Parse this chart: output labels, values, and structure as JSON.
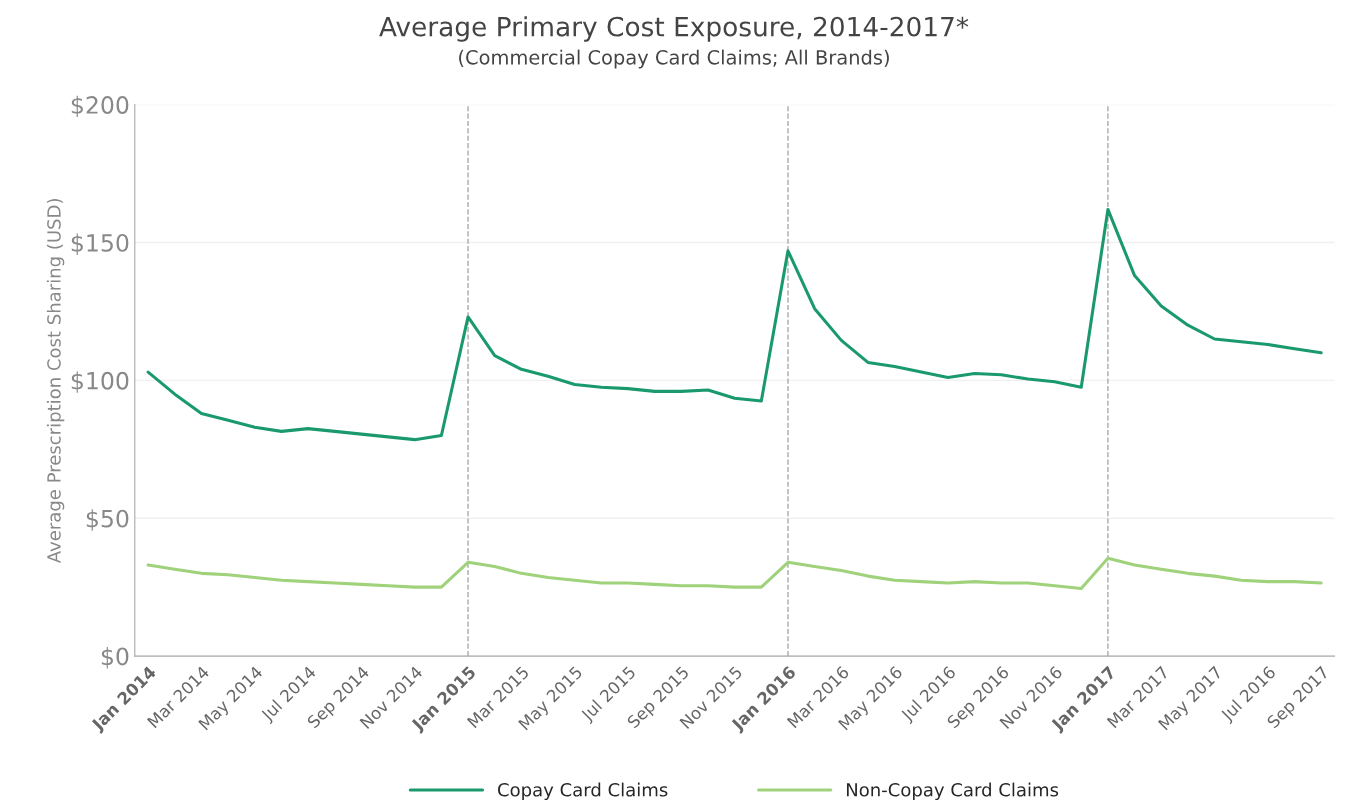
{
  "chart_data": {
    "type": "line",
    "title": "Average Primary Cost Exposure, 2014-2017*",
    "subtitle": "(Commercial Copay Card Claims; All Brands)",
    "ylabel": "Average Prescription Cost Sharing (USD)",
    "categories": [
      "Jan 2014",
      null,
      "Mar 2014",
      null,
      "May 2014",
      null,
      "Jul 2014",
      null,
      "Sep 2014",
      null,
      "Nov 2014",
      null,
      "Jan 2015",
      null,
      "Mar 2015",
      null,
      "May 2015",
      null,
      "Jul 2015",
      null,
      "Sep 2015",
      null,
      "Nov 2015",
      null,
      "Jan 2016",
      null,
      "Mar 2016",
      null,
      "May 2016",
      null,
      "Jul 2016",
      null,
      "Sep 2016",
      null,
      "Nov 2016",
      null,
      "Jan 2017",
      null,
      "Mar 2017",
      null,
      "May 2017",
      null,
      "Jul 2016",
      null,
      "Sep 2017"
    ],
    "series": [
      {
        "name": "Copay Card Claims",
        "color": "#1a9a6c",
        "values": [
          103,
          95,
          88,
          85.5,
          83,
          81.5,
          82.5,
          81.5,
          80.5,
          79.5,
          78.5,
          80,
          123,
          109,
          104,
          101.5,
          98.5,
          97.5,
          97,
          96,
          96,
          96.5,
          93.5,
          92.5,
          147,
          126,
          114.5,
          106.5,
          105,
          103,
          101,
          102.5,
          102,
          100.5,
          99.5,
          97.5,
          162,
          138,
          127,
          120,
          115,
          114,
          113,
          111.5,
          110
        ]
      },
      {
        "name": "Non-Copay Card Claims",
        "color": "#9fd27a",
        "values": [
          33,
          31.5,
          30,
          29.5,
          28.5,
          27.5,
          27,
          26.5,
          26,
          25.5,
          25,
          25,
          34,
          32.5,
          30,
          28.5,
          27.5,
          26.5,
          26.5,
          26,
          25.5,
          25.5,
          25,
          25,
          34,
          32.5,
          31,
          29,
          27.5,
          27,
          26.5,
          27,
          26.5,
          26.5,
          25.5,
          24.5,
          35.5,
          33,
          31.5,
          30,
          29,
          27.5,
          27,
          27,
          26.5
        ]
      }
    ],
    "ylim": [
      0,
      200
    ],
    "yticks": [
      {
        "value": 0,
        "label": "$0"
      },
      {
        "value": 50,
        "label": "$50"
      },
      {
        "value": 100,
        "label": "$100"
      },
      {
        "value": 150,
        "label": "$150"
      },
      {
        "value": 200,
        "label": "$200"
      }
    ],
    "ref_lines": [
      {
        "axis": "x",
        "value": "Jan 2015",
        "color": "#aaaaaa",
        "line_style": "dashed"
      },
      {
        "axis": "x",
        "value": "Jan 2016",
        "color": "#aaaaaa",
        "line_style": "dashed"
      },
      {
        "axis": "x",
        "value": "Jan 2017",
        "color": "#aaaaaa",
        "line_style": "dashed"
      }
    ],
    "grid": "y",
    "legend": "bottom",
    "line_style": "solid",
    "marker": "none"
  }
}
